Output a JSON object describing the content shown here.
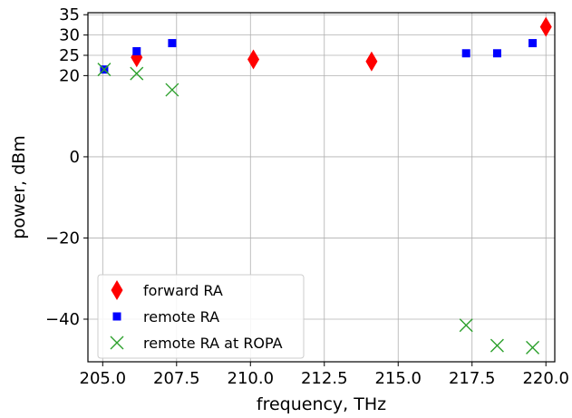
{
  "chart_data": {
    "type": "scatter",
    "title": "",
    "xlabel": "frequency, THz",
    "ylabel": "power, dBm",
    "xlim": [
      204.5,
      220.3
    ],
    "ylim": [
      -50.5,
      35.5
    ],
    "xticks": [
      205.0,
      207.5,
      210.0,
      212.5,
      215.0,
      217.5,
      220.0
    ],
    "xtick_labels": [
      "205.0",
      "207.5",
      "210.0",
      "212.5",
      "215.0",
      "217.5",
      "220.0"
    ],
    "yticks": [
      35,
      30,
      25,
      20,
      0,
      -20,
      -40
    ],
    "ytick_labels": [
      "35",
      "30",
      "25",
      "20",
      "0",
      "−20",
      "−40"
    ],
    "grid": true,
    "legend_position": "lower-left",
    "series": [
      {
        "name": "forward RA",
        "marker": "diamond",
        "color": "#ff0000",
        "x": [
          206.15,
          210.1,
          214.1,
          220.0
        ],
        "y": [
          24.5,
          24.0,
          23.5,
          32.0
        ]
      },
      {
        "name": "remote RA",
        "marker": "square",
        "color": "#0000ff",
        "x": [
          205.05,
          206.15,
          207.35,
          217.3,
          218.35,
          219.55
        ],
        "y": [
          21.5,
          26.0,
          28.0,
          25.5,
          25.5,
          28.0
        ]
      },
      {
        "name": "remote RA at ROPA",
        "marker": "x",
        "color": "#2ca02c",
        "x": [
          205.05,
          206.15,
          207.35,
          217.3,
          218.35,
          219.55
        ],
        "y": [
          21.5,
          20.5,
          16.5,
          -41.5,
          -46.5,
          -47.0
        ]
      }
    ]
  }
}
